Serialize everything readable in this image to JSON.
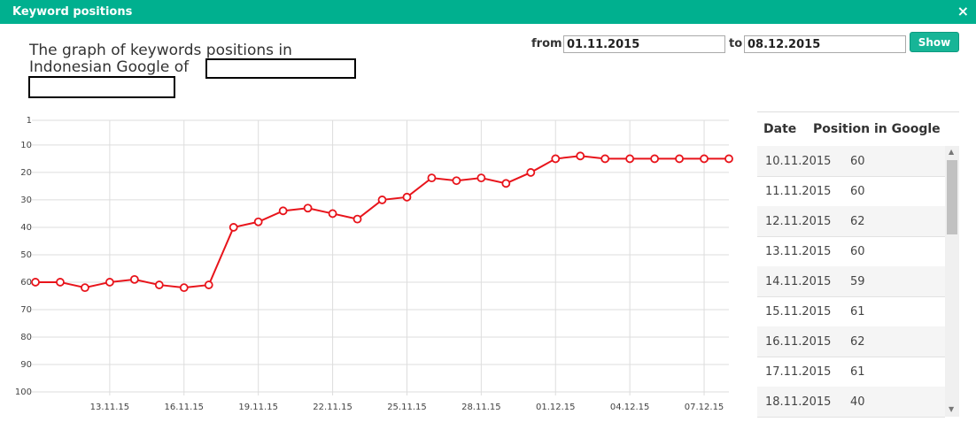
{
  "dialog": {
    "title": "Keyword positions",
    "close": "×"
  },
  "heading": "The graph of keywords positions in Indonesian Google of",
  "filter": {
    "from_label": "from",
    "from_value": "01.11.2015",
    "to_label": "to",
    "to_value": "08.12.2015",
    "button": "Show"
  },
  "chart_data": {
    "type": "line",
    "categories": [
      null,
      null,
      null,
      "13.11.15",
      null,
      null,
      "16.11.15",
      null,
      null,
      "19.11.15",
      null,
      null,
      "22.11.15",
      null,
      null,
      "25.11.15",
      null,
      null,
      "28.11.15",
      null,
      null,
      "01.12.15",
      null,
      null,
      "04.12.15",
      null,
      null,
      "07.12.15",
      null
    ],
    "series": [
      {
        "color": "#e8141b",
        "values": [
          60,
          60,
          62,
          60,
          59,
          61,
          62,
          61,
          40,
          38,
          34,
          33,
          35,
          37,
          30,
          29,
          22,
          23,
          22,
          24,
          20,
          15,
          14,
          15,
          15,
          15,
          15,
          15,
          15
        ]
      }
    ],
    "ylim": [
      1,
      100
    ],
    "y_inverted": true,
    "yticks": [
      1,
      10,
      20,
      30,
      40,
      50,
      60,
      70,
      80,
      90,
      100
    ],
    "grid": true
  },
  "table": {
    "header": [
      "Date",
      "Position in Google"
    ],
    "rows": [
      [
        "10.11.2015",
        "60"
      ],
      [
        "11.11.2015",
        "60"
      ],
      [
        "12.11.2015",
        "62"
      ],
      [
        "13.11.2015",
        "60"
      ],
      [
        "14.11.2015",
        "59"
      ],
      [
        "15.11.2015",
        "61"
      ],
      [
        "16.11.2015",
        "62"
      ],
      [
        "17.11.2015",
        "61"
      ],
      [
        "18.11.2015",
        "40"
      ]
    ]
  }
}
